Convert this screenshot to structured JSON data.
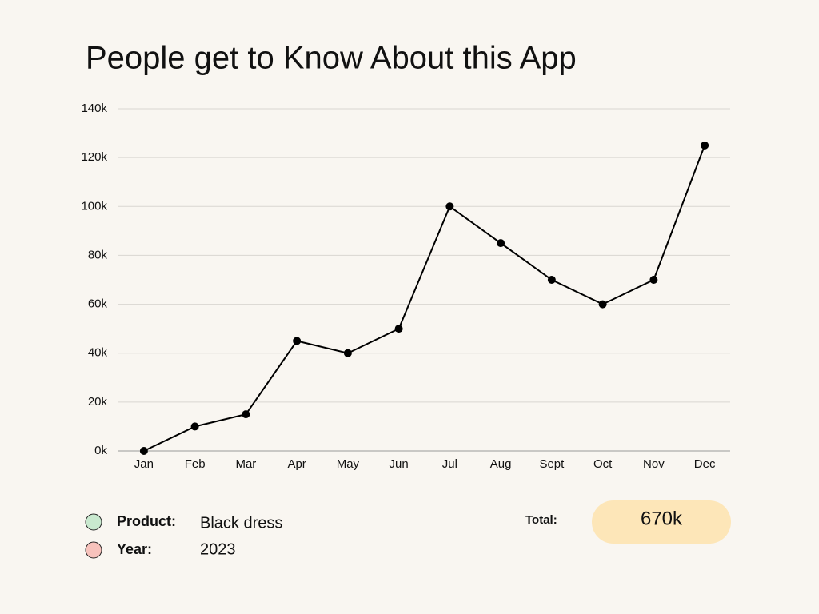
{
  "chart_data": {
    "type": "line",
    "title": "People get to Know About this App",
    "categories": [
      "Jan",
      "Feb",
      "Mar",
      "Apr",
      "May",
      "Jun",
      "Jul",
      "Aug",
      "Sept",
      "Oct",
      "Nov",
      "Dec"
    ],
    "values": [
      0,
      10000,
      15000,
      45000,
      40000,
      50000,
      100000,
      85000,
      70000,
      60000,
      70000,
      125000
    ],
    "color": "#000000",
    "ylim": [
      0,
      140000
    ],
    "yticks": [
      {
        "value": 0,
        "label": "0k"
      },
      {
        "value": 20000,
        "label": "20k"
      },
      {
        "value": 40000,
        "label": "40k"
      },
      {
        "value": 60000,
        "label": "60k"
      },
      {
        "value": 80000,
        "label": "80k"
      },
      {
        "value": 100000,
        "label": "100k"
      },
      {
        "value": 120000,
        "label": "120k"
      },
      {
        "value": 140000,
        "label": "140k"
      }
    ],
    "grid": true
  },
  "info": {
    "product_label": "Product:",
    "product": "Black dress",
    "year_label": "Year:",
    "year": "2023",
    "total_label": "Total:",
    "total": "670k"
  }
}
